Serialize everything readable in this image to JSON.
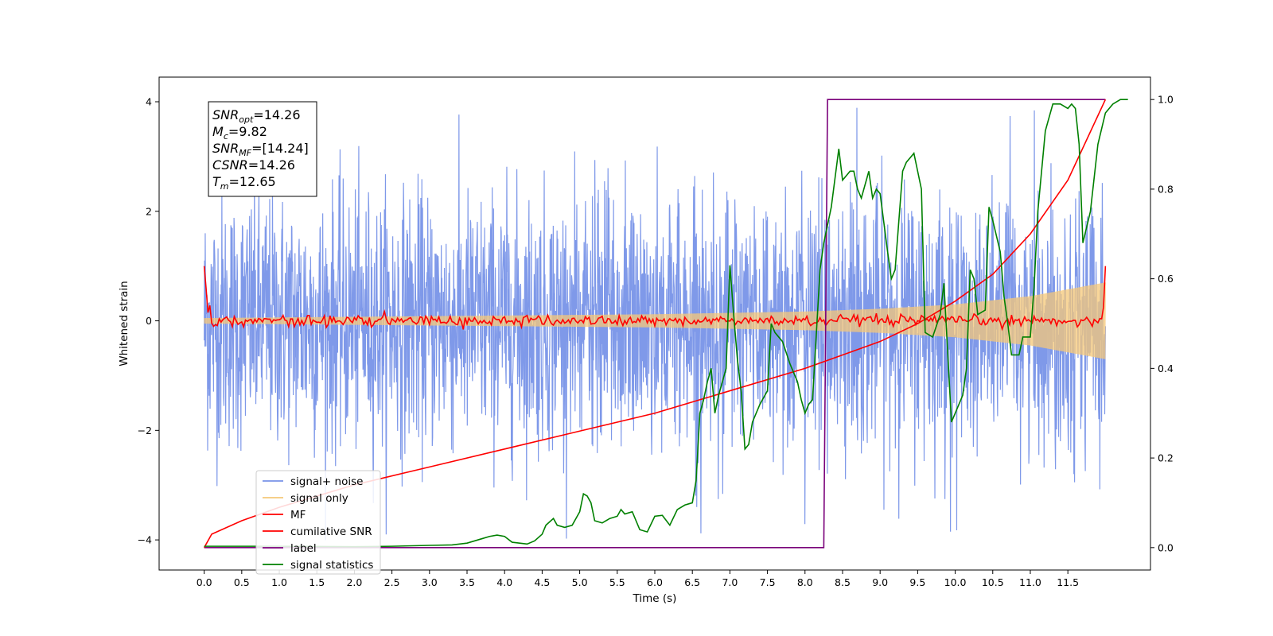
{
  "chart_data": {
    "type": "line",
    "title": "",
    "xlabel": "Time (s)",
    "ylabel_left": "Whitened strain",
    "ylabel_right": "",
    "xlim": [
      -0.6,
      12.6
    ],
    "ylim_left": [
      -4.55,
      4.45
    ],
    "ylim_right": [
      -0.05,
      1.05
    ],
    "x_ticks": [
      "0.0",
      "0.5",
      "1.0",
      "1.5",
      "2.0",
      "2.5",
      "3.0",
      "3.5",
      "4.0",
      "4.5",
      "5.0",
      "5.5",
      "6.0",
      "6.5",
      "7.0",
      "7.5",
      "8.0",
      "8.5",
      "9.0",
      "9.5",
      "10.0",
      "10.5",
      "11.0",
      "11.5"
    ],
    "y_ticks_left": [
      "4",
      "2",
      "0",
      "−2",
      "−4"
    ],
    "y_ticks_right": [
      "1.0",
      "0.8",
      "0.6",
      "0.4",
      "0.2",
      "0.0"
    ],
    "grid": false,
    "legend_position": "lower-left",
    "legend": [
      {
        "label": "signal+ noise",
        "color": "#7893e8"
      },
      {
        "label": "signal only",
        "color": "#f5c878"
      },
      {
        "label": "MF",
        "color": "#ff0000"
      },
      {
        "label": "cumilative SNR",
        "color": "#ff0000"
      },
      {
        "label": "label",
        "color": "#7a007a"
      },
      {
        "label": "signal statistics",
        "color": "#008000"
      }
    ],
    "annotation": [
      {
        "base": "SNR",
        "sub": "opt",
        "value": "=14.26"
      },
      {
        "base": "M",
        "sub": "c",
        "value": "=9.82"
      },
      {
        "base": "SNR",
        "sub": "MF",
        "value": "=[14.24]"
      },
      {
        "base": "CSNR",
        "sub": "",
        "value": "=14.26"
      },
      {
        "base": "T",
        "sub": "m",
        "value": "=12.65"
      }
    ],
    "series": [
      {
        "name": "signal+ noise",
        "axis": "left",
        "color": "#7893e8",
        "time_range": [
          0,
          12
        ],
        "amplitude_range": [
          -4.1,
          4.0
        ]
      },
      {
        "name": "signal only",
        "axis": "left",
        "color": "#f5c878",
        "time_range": [
          0,
          12
        ],
        "envelope": [
          [
            0,
            0.05
          ],
          [
            6,
            0.12
          ],
          [
            8,
            0.17
          ],
          [
            9,
            0.22
          ],
          [
            10,
            0.3
          ],
          [
            11,
            0.45
          ],
          [
            12,
            0.7
          ]
        ]
      },
      {
        "name": "MF",
        "axis": "left",
        "color": "#ff0000",
        "time_range": [
          0,
          12
        ],
        "start_value": 1.0,
        "end_value": 1.0,
        "baseline": 0.0
      },
      {
        "name": "cumilative SNR",
        "axis": "right",
        "color": "#ff0000",
        "points": [
          [
            0,
            0.0
          ],
          [
            0.1,
            0.03
          ],
          [
            0.5,
            0.06
          ],
          [
            1,
            0.09
          ],
          [
            2,
            0.14
          ],
          [
            3,
            0.18
          ],
          [
            4,
            0.22
          ],
          [
            5,
            0.26
          ],
          [
            6,
            0.3
          ],
          [
            7,
            0.35
          ],
          [
            8,
            0.4
          ],
          [
            8.5,
            0.43
          ],
          [
            9,
            0.46
          ],
          [
            9.5,
            0.5
          ],
          [
            10,
            0.55
          ],
          [
            10.5,
            0.61
          ],
          [
            11,
            0.7
          ],
          [
            11.5,
            0.82
          ],
          [
            12,
            1.0
          ]
        ]
      },
      {
        "name": "label",
        "axis": "right",
        "color": "#7a007a",
        "points": [
          [
            0,
            0.0
          ],
          [
            8.25,
            0.0
          ],
          [
            8.3,
            1.0
          ],
          [
            12,
            1.0
          ]
        ]
      },
      {
        "name": "signal statistics",
        "axis": "right",
        "color": "#008000",
        "points": [
          [
            0,
            0.003
          ],
          [
            1,
            0.003
          ],
          [
            2,
            0.002
          ],
          [
            2.5,
            0.003
          ],
          [
            3,
            0.005
          ],
          [
            3.3,
            0.006
          ],
          [
            3.5,
            0.01
          ],
          [
            3.7,
            0.02
          ],
          [
            3.8,
            0.025
          ],
          [
            3.9,
            0.028
          ],
          [
            4.0,
            0.025
          ],
          [
            4.1,
            0.012
          ],
          [
            4.3,
            0.008
          ],
          [
            4.4,
            0.015
          ],
          [
            4.5,
            0.03
          ],
          [
            4.55,
            0.05
          ],
          [
            4.65,
            0.065
          ],
          [
            4.7,
            0.05
          ],
          [
            4.8,
            0.045
          ],
          [
            4.9,
            0.05
          ],
          [
            5.0,
            0.08
          ],
          [
            5.05,
            0.12
          ],
          [
            5.1,
            0.115
          ],
          [
            5.15,
            0.1
          ],
          [
            5.2,
            0.06
          ],
          [
            5.3,
            0.055
          ],
          [
            5.4,
            0.065
          ],
          [
            5.5,
            0.07
          ],
          [
            5.55,
            0.085
          ],
          [
            5.6,
            0.075
          ],
          [
            5.7,
            0.08
          ],
          [
            5.8,
            0.04
          ],
          [
            5.9,
            0.035
          ],
          [
            6.0,
            0.07
          ],
          [
            6.1,
            0.072
          ],
          [
            6.2,
            0.05
          ],
          [
            6.3,
            0.085
          ],
          [
            6.4,
            0.095
          ],
          [
            6.5,
            0.1
          ],
          [
            6.55,
            0.15
          ],
          [
            6.6,
            0.3
          ],
          [
            6.65,
            0.33
          ],
          [
            6.7,
            0.37
          ],
          [
            6.75,
            0.4
          ],
          [
            6.8,
            0.3
          ],
          [
            6.85,
            0.34
          ],
          [
            6.9,
            0.37
          ],
          [
            6.95,
            0.4
          ],
          [
            7.0,
            0.63
          ],
          [
            7.05,
            0.52
          ],
          [
            7.1,
            0.42
          ],
          [
            7.15,
            0.35
          ],
          [
            7.2,
            0.22
          ],
          [
            7.25,
            0.23
          ],
          [
            7.3,
            0.28
          ],
          [
            7.4,
            0.32
          ],
          [
            7.5,
            0.35
          ],
          [
            7.55,
            0.5
          ],
          [
            7.6,
            0.48
          ],
          [
            7.7,
            0.46
          ],
          [
            7.8,
            0.41
          ],
          [
            7.9,
            0.37
          ],
          [
            7.95,
            0.33
          ],
          [
            8.0,
            0.3
          ],
          [
            8.05,
            0.32
          ],
          [
            8.1,
            0.33
          ],
          [
            8.2,
            0.62
          ],
          [
            8.25,
            0.68
          ],
          [
            8.3,
            0.72
          ],
          [
            8.35,
            0.76
          ],
          [
            8.45,
            0.89
          ],
          [
            8.5,
            0.82
          ],
          [
            8.55,
            0.83
          ],
          [
            8.6,
            0.84
          ],
          [
            8.65,
            0.84
          ],
          [
            8.7,
            0.8
          ],
          [
            8.75,
            0.78
          ],
          [
            8.85,
            0.84
          ],
          [
            8.9,
            0.78
          ],
          [
            8.95,
            0.8
          ],
          [
            9.0,
            0.79
          ],
          [
            9.1,
            0.66
          ],
          [
            9.15,
            0.6
          ],
          [
            9.2,
            0.62
          ],
          [
            9.3,
            0.84
          ],
          [
            9.35,
            0.86
          ],
          [
            9.45,
            0.88
          ],
          [
            9.5,
            0.84
          ],
          [
            9.55,
            0.8
          ],
          [
            9.6,
            0.48
          ],
          [
            9.7,
            0.47
          ],
          [
            9.8,
            0.52
          ],
          [
            9.85,
            0.59
          ],
          [
            9.95,
            0.28
          ],
          [
            10.0,
            0.3
          ],
          [
            10.1,
            0.34
          ],
          [
            10.15,
            0.4
          ],
          [
            10.2,
            0.62
          ],
          [
            10.25,
            0.6
          ],
          [
            10.3,
            0.52
          ],
          [
            10.4,
            0.53
          ],
          [
            10.45,
            0.76
          ],
          [
            10.5,
            0.73
          ],
          [
            10.6,
            0.66
          ],
          [
            10.65,
            0.56
          ],
          [
            10.7,
            0.5
          ],
          [
            10.75,
            0.43
          ],
          [
            10.85,
            0.43
          ],
          [
            10.9,
            0.47
          ],
          [
            11.0,
            0.47
          ],
          [
            11.05,
            0.58
          ],
          [
            11.1,
            0.75
          ],
          [
            11.2,
            0.93
          ],
          [
            11.3,
            0.99
          ],
          [
            11.4,
            0.99
          ],
          [
            11.5,
            0.98
          ],
          [
            11.55,
            0.99
          ],
          [
            11.6,
            0.98
          ],
          [
            11.65,
            0.9
          ],
          [
            11.7,
            0.68
          ],
          [
            11.8,
            0.75
          ],
          [
            11.9,
            0.9
          ],
          [
            12.0,
            0.97
          ],
          [
            12.1,
            0.99
          ],
          [
            12.2,
            1.0
          ],
          [
            12.3,
            1.0
          ]
        ]
      }
    ]
  }
}
